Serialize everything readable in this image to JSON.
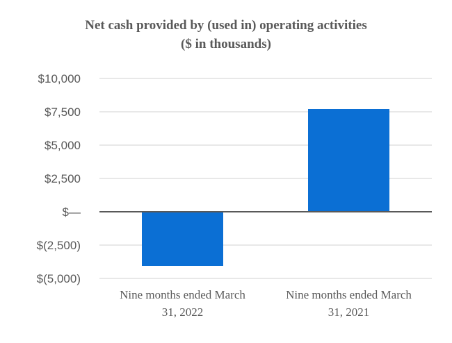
{
  "title": {
    "line1": "Net cash provided by (used in) operating activities",
    "line2": "($ in thousands)"
  },
  "chart_data": {
    "type": "bar",
    "title": "Net cash provided by (used in) operating activities ($ in thousands)",
    "unit": "USD thousands",
    "categories": [
      "Nine months ended March 31, 2022",
      "Nine months ended March 31, 2021"
    ],
    "category_label_lines": [
      [
        "Nine months ended March",
        "31, 2022"
      ],
      [
        "Nine months ended March",
        "31, 2021"
      ]
    ],
    "values": [
      -4000,
      7700
    ],
    "ylim": [
      -5000,
      10000
    ],
    "yticks": [
      {
        "value": 10000,
        "label": "$10,000"
      },
      {
        "value": 7500,
        "label": "$7,500"
      },
      {
        "value": 5000,
        "label": "$5,000"
      },
      {
        "value": 2500,
        "label": "$2,500"
      },
      {
        "value": 0,
        "label": "$—"
      },
      {
        "value": -2500,
        "label": "$(2,500)"
      },
      {
        "value": -5000,
        "label": "$(5,000)"
      }
    ],
    "grid": true,
    "legend": false,
    "colors": {
      "bar": "#0b6fd4",
      "gridline": "#e8e8e8",
      "zero_axis_line": "#595959",
      "text": "#595959"
    }
  }
}
